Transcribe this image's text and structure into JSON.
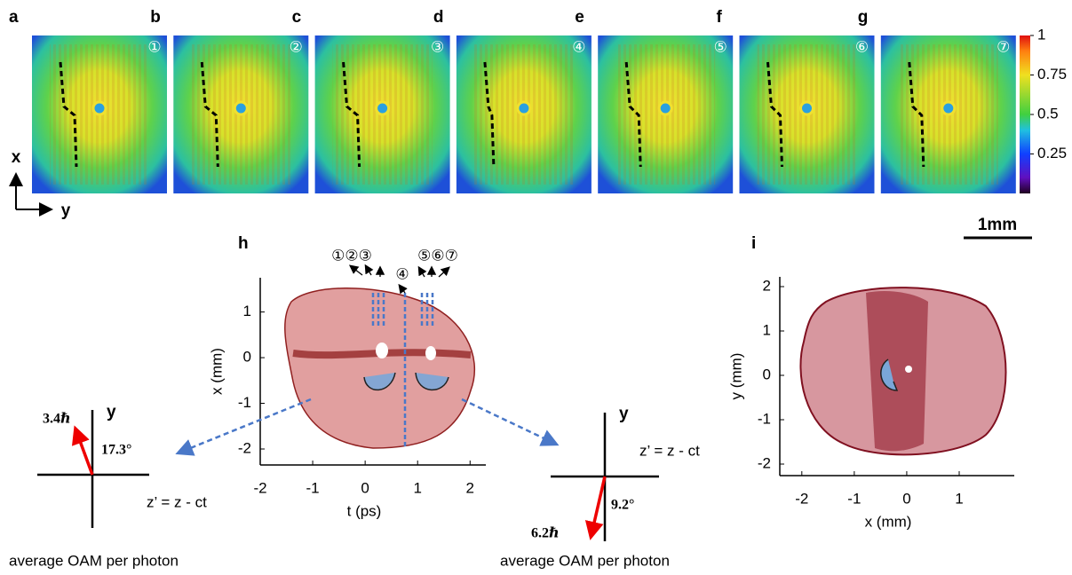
{
  "panels_top": [
    {
      "label": "a",
      "index": "①"
    },
    {
      "label": "b",
      "index": "②"
    },
    {
      "label": "c",
      "index": "③"
    },
    {
      "label": "d",
      "index": "④"
    },
    {
      "label": "e",
      "index": "⑤"
    },
    {
      "label": "f",
      "index": "⑥"
    },
    {
      "label": "g",
      "index": "⑦"
    }
  ],
  "colorbar": {
    "ticks": [
      1,
      0.75,
      0.5,
      0.25
    ],
    "lim": [
      0,
      1
    ]
  },
  "axes_xy": {
    "x": "x",
    "y": "y"
  },
  "scale_bar": "1mm",
  "panel_h": {
    "label": "h",
    "xlabel": "t (ps)",
    "ylabel": "x (mm)",
    "xlim": [
      -2,
      2.3
    ],
    "ylim": [
      -2.35,
      1.75
    ],
    "xticks": [
      -2,
      -1,
      0,
      1,
      2
    ],
    "yticks": [
      1,
      0,
      -1,
      -2
    ],
    "markers": [
      "①②③",
      "④",
      "⑤⑥⑦"
    ]
  },
  "panel_i": {
    "label": "i",
    "xlabel": "x (mm)",
    "ylabel": "y (mm)",
    "xlim": [
      -2.42,
      2.05
    ],
    "ylim": [
      -2.26,
      2.22
    ],
    "xticks": [
      -2,
      -1,
      0,
      1
    ],
    "yticks": [
      2,
      1,
      0,
      -1,
      -2
    ]
  },
  "left_vector": {
    "oam": "3.4ℏ",
    "angle": "17.3°",
    "axis_y": "y",
    "axis_z": "z’ = z - ct",
    "caption": "average OAM per photon"
  },
  "right_vector": {
    "oam": "6.2ℏ",
    "angle": "9.2°",
    "axis_y": "y",
    "axis_z": "z’ = z - ct",
    "caption": "average OAM per photon"
  }
}
